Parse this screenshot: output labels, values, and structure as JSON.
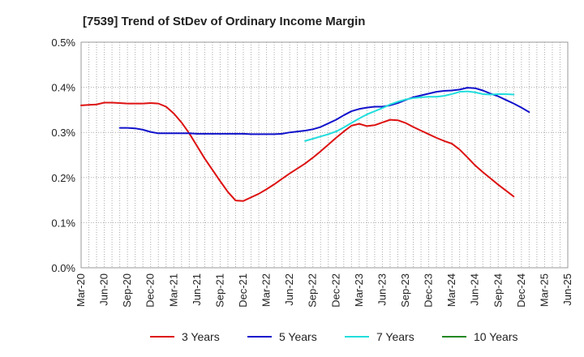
{
  "chart_data": {
    "type": "line",
    "title": "[7539]  Trend of StDev of Ordinary Income Margin",
    "xlabel": "",
    "ylabel": "",
    "ylim": [
      0,
      0.5
    ],
    "y_ticks": [
      "0.0%",
      "0.1%",
      "0.2%",
      "0.3%",
      "0.4%",
      "0.5%"
    ],
    "y_tick_values": [
      0,
      0.1,
      0.2,
      0.3,
      0.4,
      0.5
    ],
    "x_ticks": [
      "Mar-20",
      "Jun-20",
      "Sep-20",
      "Dec-20",
      "Mar-21",
      "Jun-21",
      "Sep-21",
      "Dec-21",
      "Mar-22",
      "Jun-22",
      "Sep-22",
      "Dec-22",
      "Mar-23",
      "Jun-23",
      "Sep-23",
      "Dec-23",
      "Mar-24",
      "Jun-24",
      "Sep-24",
      "Dec-24",
      "Mar-25",
      "Jun-25"
    ],
    "x_range": [
      "Mar-20",
      "Jun-25"
    ],
    "grid": true,
    "legend_position": "bottom",
    "series": [
      {
        "name": "3 Years",
        "color": "#dd1111",
        "start": "Mar-20",
        "values": [
          0.36,
          0.361,
          0.362,
          0.366,
          0.366,
          0.365,
          0.364,
          0.364,
          0.364,
          0.365,
          0.364,
          0.357,
          0.342,
          0.322,
          0.298,
          0.27,
          0.242,
          0.217,
          0.192,
          0.168,
          0.149,
          0.148,
          0.156,
          0.164,
          0.174,
          0.185,
          0.197,
          0.209,
          0.22,
          0.231,
          0.244,
          0.258,
          0.273,
          0.288,
          0.302,
          0.315,
          0.319,
          0.314,
          0.316,
          0.322,
          0.328,
          0.327,
          0.321,
          0.312,
          0.304,
          0.296,
          0.288,
          0.281,
          0.275,
          0.262,
          0.245,
          0.227,
          0.212,
          0.198,
          0.184,
          0.171,
          0.158
        ]
      },
      {
        "name": "5 Years",
        "color": "#1111cc",
        "start": "Aug-20",
        "values": [
          0.31,
          0.31,
          0.309,
          0.306,
          0.301,
          0.298,
          0.298,
          0.298,
          0.298,
          0.298,
          0.297,
          0.297,
          0.297,
          0.297,
          0.297,
          0.297,
          0.297,
          0.296,
          0.296,
          0.296,
          0.296,
          0.297,
          0.3,
          0.302,
          0.304,
          0.307,
          0.312,
          0.32,
          0.328,
          0.338,
          0.347,
          0.352,
          0.355,
          0.357,
          0.357,
          0.36,
          0.365,
          0.372,
          0.378,
          0.382,
          0.386,
          0.39,
          0.392,
          0.393,
          0.395,
          0.399,
          0.398,
          0.393,
          0.386,
          0.38,
          0.372,
          0.364,
          0.355,
          0.345
        ]
      },
      {
        "name": "7 Years",
        "color": "#22dddd",
        "start": "Aug-22",
        "values": [
          0.281,
          0.286,
          0.291,
          0.296,
          0.302,
          0.311,
          0.321,
          0.331,
          0.34,
          0.347,
          0.354,
          0.362,
          0.368,
          0.373,
          0.376,
          0.378,
          0.379,
          0.379,
          0.381,
          0.385,
          0.39,
          0.391,
          0.389,
          0.385,
          0.384,
          0.385,
          0.385,
          0.384
        ]
      },
      {
        "name": "10 Years",
        "color": "#228822",
        "start": "Mar-25",
        "values": []
      }
    ]
  }
}
